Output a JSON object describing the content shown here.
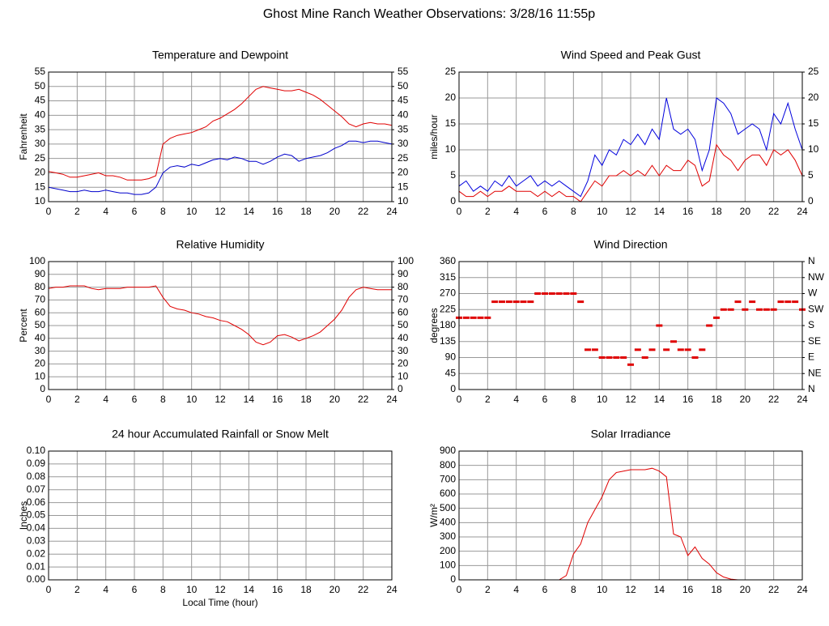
{
  "title": "Ghost Mine Ranch Weather Observations: 3/28/16 11:55p",
  "chart_data": [
    {
      "type": "line",
      "title": "Temperature and Dewpoint",
      "y_label": "Fahrenheit",
      "grid": true,
      "x": [
        0,
        0.5,
        1,
        1.5,
        2,
        2.5,
        3,
        3.5,
        4,
        4.5,
        5,
        5.5,
        6,
        6.5,
        7,
        7.5,
        8,
        8.5,
        9,
        9.5,
        10,
        10.5,
        11,
        11.5,
        12,
        12.5,
        13,
        13.5,
        14,
        14.5,
        15,
        15.5,
        16,
        16.5,
        17,
        17.5,
        18,
        18.5,
        19,
        19.5,
        20,
        20.5,
        21,
        21.5,
        22,
        22.5,
        23,
        23.5,
        24
      ],
      "series": [
        {
          "color": "#e00000",
          "values": [
            20.5,
            20,
            19.5,
            18.5,
            18.5,
            19,
            19.5,
            20,
            19,
            19,
            18.5,
            17.5,
            17.5,
            17.5,
            18,
            19,
            30,
            32,
            33,
            33.5,
            34,
            35,
            36,
            38,
            39,
            40.5,
            42,
            44,
            46.5,
            49,
            50,
            49.5,
            49,
            48.5,
            48.5,
            49,
            48,
            47,
            45.5,
            43.5,
            41.5,
            39.5,
            37,
            36,
            37,
            37.5,
            37,
            37,
            36.5
          ]
        },
        {
          "color": "#0000cc",
          "values": [
            15,
            14.5,
            14,
            13.5,
            13.5,
            14,
            13.5,
            13.5,
            14,
            13.5,
            13,
            13,
            12.5,
            12.5,
            13,
            15,
            20,
            22,
            22.5,
            22,
            23,
            22.5,
            23.5,
            24.5,
            25,
            24.5,
            25.5,
            25,
            24,
            24,
            23,
            24,
            25.5,
            26.5,
            26,
            24,
            25,
            25.5,
            26,
            27,
            28.5,
            29.5,
            31,
            31,
            30.5,
            31,
            31,
            30.5,
            30
          ]
        }
      ],
      "xlim": [
        0,
        24
      ],
      "xticks": [
        0,
        2,
        4,
        6,
        8,
        10,
        12,
        14,
        16,
        18,
        20,
        22,
        24
      ],
      "ylim": [
        10,
        55
      ],
      "yticks": [
        10,
        15,
        20,
        25,
        30,
        35,
        40,
        45,
        50,
        55
      ],
      "y2lim": [
        10,
        55
      ],
      "y2ticks": [
        10,
        15,
        20,
        25,
        30,
        35,
        40,
        45,
        50,
        55
      ]
    },
    {
      "type": "line",
      "title": "Wind Speed and Peak Gust",
      "y_label": "miles/hour",
      "grid": true,
      "x": [
        0,
        0.5,
        1,
        1.5,
        2,
        2.5,
        3,
        3.5,
        4,
        4.5,
        5,
        5.5,
        6,
        6.5,
        7,
        7.5,
        8,
        8.5,
        9,
        9.5,
        10,
        10.5,
        11,
        11.5,
        12,
        12.5,
        13,
        13.5,
        14,
        14.5,
        15,
        15.5,
        16,
        16.5,
        17,
        17.5,
        18,
        18.5,
        19,
        19.5,
        20,
        20.5,
        21,
        21.5,
        22,
        22.5,
        23,
        23.5,
        24
      ],
      "series": [
        {
          "color": "#0000dd",
          "values": [
            3,
            4,
            2,
            3,
            2,
            4,
            3,
            5,
            3,
            4,
            5,
            3,
            4,
            3,
            4,
            3,
            2,
            1,
            4,
            9,
            7,
            10,
            9,
            12,
            11,
            13,
            11,
            14,
            12,
            20,
            14,
            13,
            14,
            12,
            6,
            10,
            20,
            19,
            17,
            13,
            14,
            15,
            14,
            10,
            17,
            15,
            19,
            14,
            10
          ]
        },
        {
          "color": "#e00000",
          "values": [
            2,
            1,
            1,
            2,
            1,
            2,
            2,
            3,
            2,
            2,
            2,
            1,
            2,
            1,
            2,
            1,
            1,
            0,
            2,
            4,
            3,
            5,
            5,
            6,
            5,
            6,
            5,
            7,
            5,
            7,
            6,
            6,
            8,
            7,
            3,
            4,
            11,
            9,
            8,
            6,
            8,
            9,
            9,
            7,
            10,
            9,
            10,
            8,
            5
          ]
        }
      ],
      "xlim": [
        0,
        24
      ],
      "xticks": [
        0,
        2,
        4,
        6,
        8,
        10,
        12,
        14,
        16,
        18,
        20,
        22,
        24
      ],
      "ylim": [
        0,
        25
      ],
      "yticks": [
        0,
        5,
        10,
        15,
        20,
        25
      ],
      "y2lim": [
        0,
        25
      ],
      "y2ticks": [
        0,
        5,
        10,
        15,
        20,
        25
      ]
    },
    {
      "type": "line",
      "title": "Relative Humidity",
      "y_label": "Percent",
      "grid": true,
      "x": [
        0,
        0.5,
        1,
        1.5,
        2,
        2.5,
        3,
        3.5,
        4,
        4.5,
        5,
        5.5,
        6,
        6.5,
        7,
        7.5,
        8,
        8.5,
        9,
        9.5,
        10,
        10.5,
        11,
        11.5,
        12,
        12.5,
        13,
        13.5,
        14,
        14.5,
        15,
        15.5,
        16,
        16.5,
        17,
        17.5,
        18,
        18.5,
        19,
        19.5,
        20,
        20.5,
        21,
        21.5,
        22,
        22.5,
        23,
        23.5,
        24
      ],
      "series": [
        {
          "color": "#e00000",
          "values": [
            79,
            80,
            80,
            81,
            81,
            81,
            79,
            78,
            79,
            79,
            79,
            80,
            80,
            80,
            80,
            81,
            72,
            65,
            63,
            62,
            60,
            59,
            57,
            56,
            54,
            53,
            50,
            47,
            43,
            37,
            35,
            37,
            42,
            43,
            41,
            38,
            40,
            42,
            45,
            50,
            55,
            62,
            72,
            78,
            80,
            79,
            78,
            78,
            78
          ]
        }
      ],
      "xlim": [
        0,
        24
      ],
      "xticks": [
        0,
        2,
        4,
        6,
        8,
        10,
        12,
        14,
        16,
        18,
        20,
        22,
        24
      ],
      "ylim": [
        0,
        100
      ],
      "yticks": [
        0,
        10,
        20,
        30,
        40,
        50,
        60,
        70,
        80,
        90,
        100
      ],
      "y2lim": [
        0,
        100
      ],
      "y2ticks": [
        0,
        10,
        20,
        30,
        40,
        50,
        60,
        70,
        80,
        90,
        100
      ]
    },
    {
      "type": "scatter",
      "title": "Wind Direction",
      "y_label": "degrees",
      "grid": true,
      "x": [
        0,
        0.5,
        1,
        1.5,
        2,
        2.5,
        3,
        3.5,
        4,
        4.5,
        5,
        5.5,
        6,
        6.5,
        7,
        7.5,
        8,
        8.5,
        9,
        9.5,
        10,
        10.5,
        11,
        11.5,
        12,
        12.5,
        13,
        13.5,
        14,
        14.5,
        15,
        15.5,
        16,
        16.5,
        17,
        17.5,
        18,
        18.5,
        19,
        19.5,
        20,
        20.5,
        21,
        21.5,
        22,
        22.5,
        23,
        23.5,
        24
      ],
      "series": [
        {
          "color": "#e00000",
          "values": [
            202,
            202,
            202,
            202,
            202,
            247,
            247,
            247,
            247,
            247,
            247,
            270,
            270,
            270,
            270,
            270,
            270,
            247,
            112,
            112,
            90,
            90,
            90,
            90,
            70,
            112,
            90,
            112,
            180,
            112,
            135,
            112,
            112,
            90,
            112,
            180,
            202,
            225,
            225,
            247,
            225,
            247,
            225,
            225,
            225,
            247,
            247,
            247,
            225
          ]
        }
      ],
      "xlim": [
        0,
        24
      ],
      "xticks": [
        0,
        2,
        4,
        6,
        8,
        10,
        12,
        14,
        16,
        18,
        20,
        22,
        24
      ],
      "ylim": [
        0,
        360
      ],
      "yticks": [
        0,
        45,
        90,
        135,
        180,
        225,
        270,
        315,
        360
      ],
      "y2lim": [
        0,
        360
      ],
      "y2ticks": [
        {
          "value": 0,
          "label": "N"
        },
        {
          "value": 45,
          "label": "NE"
        },
        {
          "value": 90,
          "label": "E"
        },
        {
          "value": 135,
          "label": "SE"
        },
        {
          "value": 180,
          "label": "S"
        },
        {
          "value": 225,
          "label": "SW"
        },
        {
          "value": 270,
          "label": "W"
        },
        {
          "value": 315,
          "label": "NW"
        },
        {
          "value": 360,
          "label": "N"
        }
      ]
    },
    {
      "type": "line",
      "title": "24 hour Accumulated Rainfall or Snow Melt",
      "y_label": "Inches",
      "x_label": "Local Time (hour)",
      "grid": true,
      "x": [
        0,
        24
      ],
      "series": [
        {
          "color": "#e00000",
          "values": [
            0,
            0
          ]
        }
      ],
      "xlim": [
        0,
        24
      ],
      "xticks": [
        0,
        2,
        4,
        6,
        8,
        10,
        12,
        14,
        16,
        18,
        20,
        22,
        24
      ],
      "ylim": [
        0,
        0.1
      ],
      "yticks": [
        {
          "value": 0,
          "label": "0.00"
        },
        0.01,
        0.02,
        0.03,
        0.04,
        0.05,
        0.06,
        0.07,
        0.08,
        0.09,
        {
          "value": 0.1,
          "label": "0.10"
        }
      ]
    },
    {
      "type": "line",
      "title": "Solar Irradiance",
      "y_label": "W/m²",
      "grid": true,
      "x": [
        0,
        0.5,
        1,
        1.5,
        2,
        2.5,
        3,
        3.5,
        4,
        4.5,
        5,
        5.5,
        6,
        6.5,
        7,
        7.5,
        8,
        8.5,
        9,
        9.5,
        10,
        10.5,
        11,
        11.5,
        12,
        12.5,
        13,
        13.5,
        14,
        14.5,
        15,
        15.5,
        16,
        16.5,
        17,
        17.5,
        18,
        18.5,
        19,
        19.5,
        20,
        20.5,
        21,
        21.5,
        22,
        22.5,
        23,
        23.5,
        24
      ],
      "series": [
        {
          "color": "#e00000",
          "values": [
            0,
            0,
            0,
            0,
            0,
            0,
            0,
            0,
            0,
            0,
            0,
            0,
            0,
            0,
            0,
            30,
            180,
            250,
            400,
            490,
            580,
            700,
            750,
            760,
            770,
            770,
            770,
            780,
            760,
            720,
            320,
            300,
            170,
            230,
            150,
            110,
            50,
            20,
            5,
            0,
            0,
            0,
            0,
            0,
            0,
            0,
            0,
            0,
            0
          ]
        }
      ],
      "xlim": [
        0,
        24
      ],
      "xticks": [
        0,
        2,
        4,
        6,
        8,
        10,
        12,
        14,
        16,
        18,
        20,
        22,
        24
      ],
      "ylim": [
        0,
        900
      ],
      "yticks": [
        0,
        100,
        200,
        300,
        400,
        500,
        600,
        700,
        800,
        900
      ]
    }
  ]
}
